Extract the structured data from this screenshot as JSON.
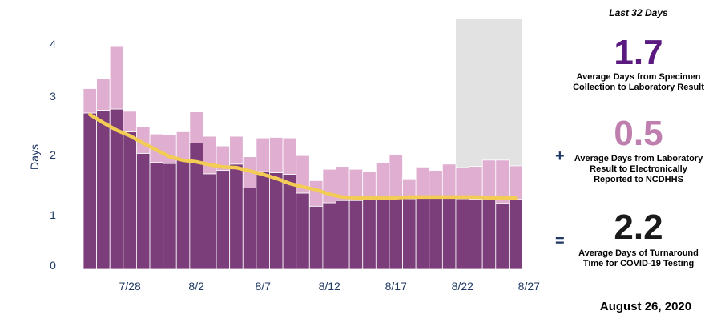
{
  "chart_data": {
    "type": "bar",
    "stacked": true,
    "ylabel": "Days",
    "ylim": [
      0,
      4.4
    ],
    "yticks": [
      0,
      1,
      2,
      3,
      4
    ],
    "x_tick_labels": [
      "7/28",
      "8/2",
      "8/7",
      "8/12",
      "8/17",
      "8/22",
      "8/27"
    ],
    "dates": [
      "7/25",
      "7/26",
      "7/27",
      "7/28",
      "7/29",
      "7/30",
      "7/31",
      "8/1",
      "8/2",
      "8/3",
      "8/4",
      "8/5",
      "8/6",
      "8/7",
      "8/8",
      "8/9",
      "8/10",
      "8/11",
      "8/12",
      "8/13",
      "8/14",
      "8/15",
      "8/16",
      "8/17",
      "8/18",
      "8/19",
      "8/20",
      "8/21",
      "8/22",
      "8/23",
      "8/24",
      "8/25",
      "8/26"
    ],
    "series": [
      {
        "values": [
          2.75,
          2.8,
          2.82,
          2.42,
          2.04,
          1.88,
          1.86,
          1.92,
          2.22,
          1.68,
          1.74,
          1.85,
          1.43,
          1.72,
          1.7,
          1.67,
          1.34,
          1.11,
          1.17,
          1.21,
          1.21,
          1.24,
          1.24,
          1.24,
          1.24,
          1.25,
          1.26,
          1.25,
          1.24,
          1.23,
          1.22,
          1.16,
          1.23
        ],
        "color": "#7b3e7a"
      },
      {
        "values": [
          0.43,
          0.55,
          1.1,
          0.36,
          0.47,
          0.5,
          0.51,
          0.5,
          0.55,
          0.66,
          0.43,
          0.49,
          0.55,
          0.59,
          0.62,
          0.64,
          0.66,
          0.45,
          0.59,
          0.6,
          0.55,
          0.48,
          0.64,
          0.77,
          0.35,
          0.55,
          0.48,
          0.6,
          0.55,
          0.58,
          0.7,
          0.76,
          0.59
        ],
        "color": "#dfaed0"
      }
    ],
    "trend": {
      "values": [
        2.72,
        2.58,
        2.45,
        2.35,
        2.22,
        2.1,
        1.98,
        1.92,
        1.89,
        1.84,
        1.8,
        1.79,
        1.73,
        1.67,
        1.6,
        1.51,
        1.45,
        1.4,
        1.32,
        1.27,
        1.26,
        1.26,
        1.26,
        1.26,
        1.27,
        1.27,
        1.27,
        1.27,
        1.27,
        1.27,
        1.26,
        1.26,
        1.25
      ],
      "color": "#f2cc55"
    },
    "shaded_region": {
      "from": "8/22",
      "to": "8/26",
      "color": "#e2e2e2"
    },
    "grid": false
  },
  "summary": {
    "period_label": "Last 32 Days",
    "metric1_value": "1.7",
    "metric1_desc": "Average Days from Specimen Collection to Laboratory Result",
    "metric1_color": "#5b1a80",
    "plus_sign": "+",
    "metric2_value": "0.5",
    "metric2_desc": "Average Days from Laboratory Result to Electronically Reported to NCDHHS",
    "metric2_color": "#bf7fae",
    "equals_sign": "=",
    "metric3_value": "2.2",
    "metric3_desc": "Average Days of Turnaround Time for COVID-19 Testing",
    "metric3_color": "#1a1a1a",
    "date": "August 26, 2020"
  }
}
